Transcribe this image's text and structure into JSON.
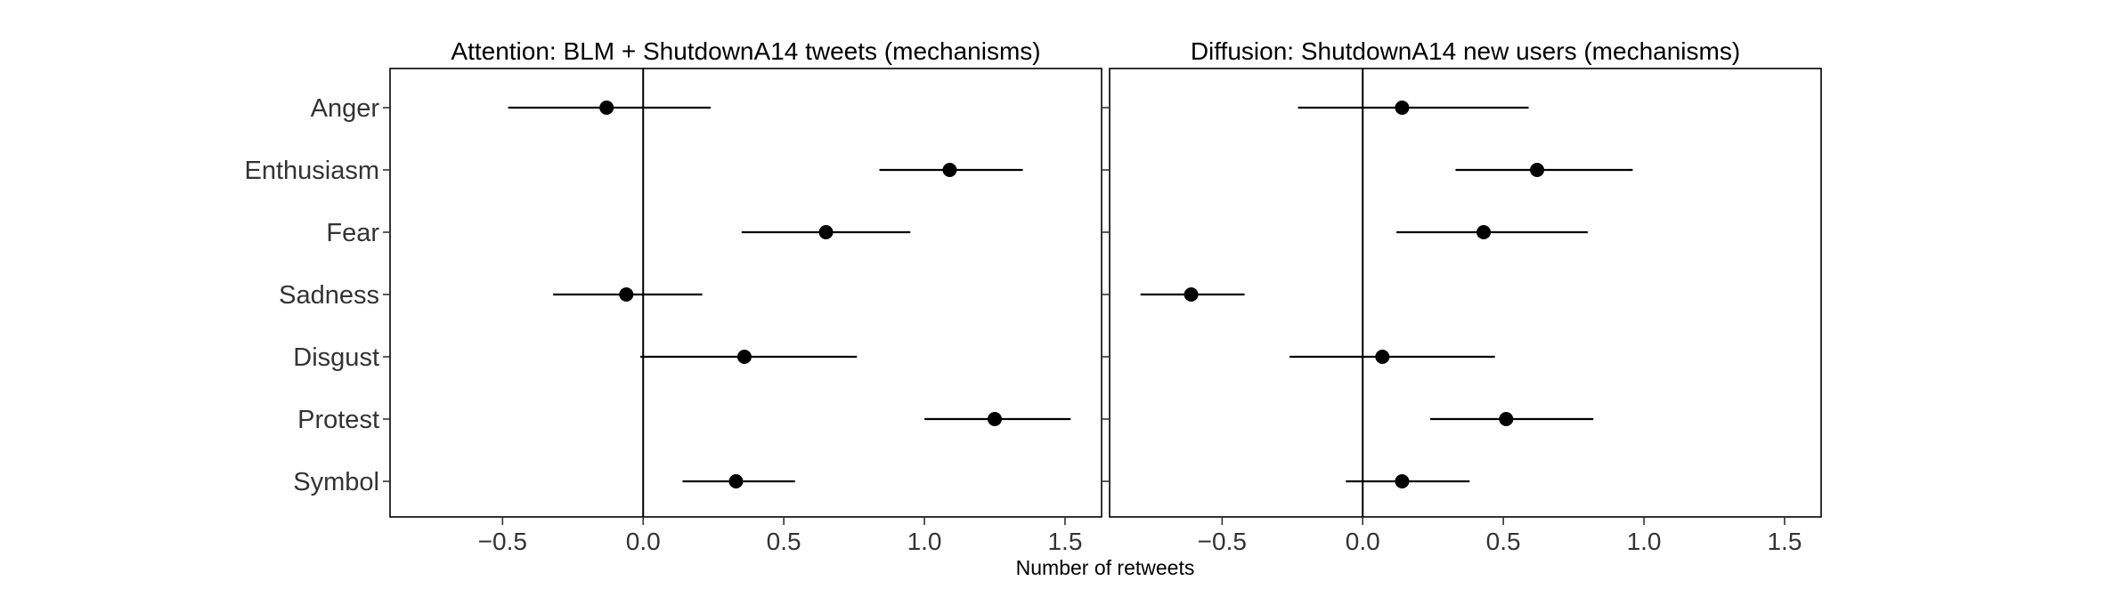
{
  "chart_data": [
    {
      "type": "scatter",
      "subtype": "coefficient-plot",
      "title": "Attention: BLM + ShutdownA14 tweets (mechanisms)",
      "categories": [
        "Anger",
        "Enthusiasm",
        "Fear",
        "Sadness",
        "Disgust",
        "Protest",
        "Symbol"
      ],
      "estimates": [
        -0.13,
        1.09,
        0.65,
        -0.06,
        0.36,
        1.25,
        0.33
      ],
      "ci_low": [
        -0.48,
        0.84,
        0.35,
        -0.32,
        -0.01,
        1.0,
        0.14
      ],
      "ci_high": [
        0.24,
        1.35,
        0.95,
        0.21,
        0.76,
        1.52,
        0.54
      ],
      "xlim": [
        -0.9,
        1.63
      ],
      "xticks": [
        -0.5,
        0.0,
        0.5,
        1.0,
        1.5
      ],
      "xtick_labels": [
        "−0.5",
        "0.0",
        "0.5",
        "1.0",
        "1.5"
      ],
      "reference_line": 0,
      "grid": false
    },
    {
      "type": "scatter",
      "subtype": "coefficient-plot",
      "title": "Diffusion: ShutdownA14 new users (mechanisms)",
      "categories": [
        "Anger",
        "Enthusiasm",
        "Fear",
        "Sadness",
        "Disgust",
        "Protest",
        "Symbol"
      ],
      "estimates": [
        0.14,
        0.62,
        0.43,
        -0.61,
        0.07,
        0.51,
        0.14
      ],
      "ci_low": [
        -0.23,
        0.33,
        0.12,
        -0.79,
        -0.26,
        0.24,
        -0.06
      ],
      "ci_high": [
        0.59,
        0.96,
        0.8,
        -0.42,
        0.47,
        0.82,
        0.38
      ],
      "xlim": [
        -0.9,
        1.63
      ],
      "xticks": [
        -0.5,
        0.0,
        0.5,
        1.0,
        1.5
      ],
      "xtick_labels": [
        "−0.5",
        "0.0",
        "0.5",
        "1.0",
        "1.5"
      ],
      "reference_line": 0,
      "grid": false
    }
  ],
  "xlabel": "Number of retweets"
}
